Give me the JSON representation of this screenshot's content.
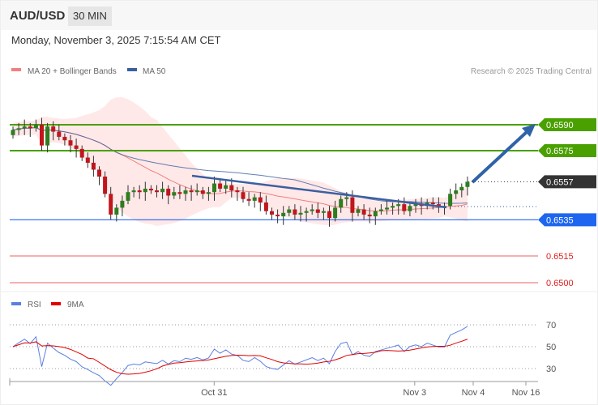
{
  "header": {
    "pair": "AUD/USD",
    "timeframe": "30 MIN",
    "datetime": "Monday, November 3, 2025 7:15:54 AM CET"
  },
  "legend": {
    "ma20": "MA 20 + Bollinger Bands",
    "ma50": "MA 50",
    "credit": "Research © 2025 Trading Central"
  },
  "rsi_legend": {
    "rsi": "RSI",
    "ma9": "9MA"
  },
  "colors": {
    "up": "#2e7d1e",
    "down": "#c0161c",
    "ma20": "#f08080",
    "ma50": "#3a5fa0",
    "band": "#ffe4e4",
    "green": "#4aa000",
    "blue": "#1e66f0",
    "dark": "#333333",
    "red": "#e02020"
  },
  "chart_data": {
    "type": "candlestick",
    "price_levels": [
      {
        "label": "0.6590",
        "value": 0.659,
        "kind": "target"
      },
      {
        "label": "0.6575",
        "value": 0.6575,
        "kind": "target"
      },
      {
        "label": "0.6557",
        "value": 0.6557,
        "kind": "last"
      },
      {
        "label": "0.6535",
        "value": 0.6535,
        "kind": "pivot"
      },
      {
        "label": "0.6515",
        "value": 0.6515,
        "kind": "support"
      },
      {
        "label": "0.6500",
        "value": 0.65,
        "kind": "support"
      }
    ],
    "first_open": 0.6584,
    "closes": [
      0.6587,
      0.6588,
      0.6589,
      0.6588,
      0.659,
      0.6578,
      0.6589,
      0.6586,
      0.6583,
      0.6581,
      0.6578,
      0.6576,
      0.6571,
      0.6568,
      0.6564,
      0.656,
      0.655,
      0.6538,
      0.6542,
      0.6546,
      0.6551,
      0.6552,
      0.6551,
      0.6553,
      0.6552,
      0.6551,
      0.6553,
      0.6549,
      0.6551,
      0.655,
      0.6552,
      0.6551,
      0.6552,
      0.655,
      0.6551,
      0.6556,
      0.6553,
      0.6555,
      0.6552,
      0.6551,
      0.6547,
      0.6546,
      0.6548,
      0.6545,
      0.654,
      0.6538,
      0.6537,
      0.6539,
      0.6541,
      0.6538,
      0.6539,
      0.654,
      0.6541,
      0.6539,
      0.654,
      0.6536,
      0.6542,
      0.6547,
      0.6548,
      0.6539,
      0.6541,
      0.6538,
      0.6537,
      0.654,
      0.6541,
      0.6542,
      0.6543,
      0.6544,
      0.654,
      0.6543,
      0.6544,
      0.6543,
      0.6545,
      0.6544,
      0.6543,
      0.6543,
      0.655,
      0.6552,
      0.6554,
      0.6557
    ],
    "rsi_ticks": [
      {
        "label": "70",
        "value": 70
      },
      {
        "label": "50",
        "value": 50
      },
      {
        "label": "30",
        "value": 30
      }
    ],
    "x_labels": [
      {
        "label": "Oct 31",
        "index": 33
      },
      {
        "label": "Nov 3",
        "index": 68
      },
      {
        "label": "Nov 4",
        "index": 80
      },
      {
        "label": "Nov 16",
        "index": 89
      }
    ]
  }
}
